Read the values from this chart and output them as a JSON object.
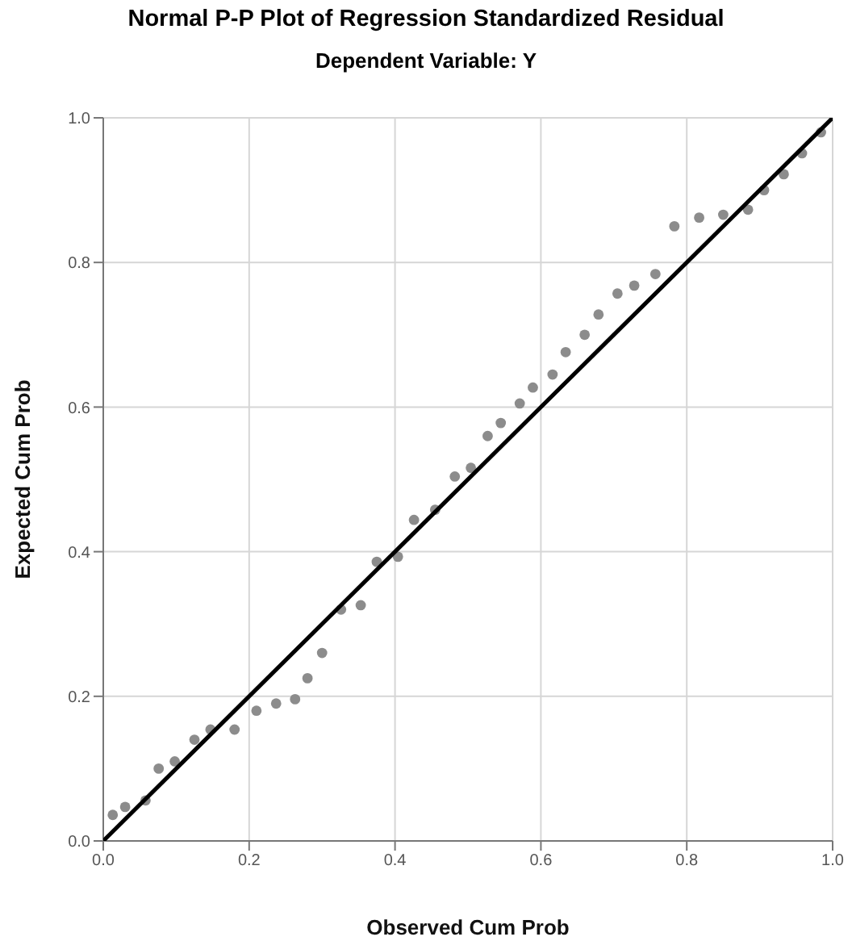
{
  "chart_data": {
    "type": "scatter",
    "title": "Normal P-P Plot of Regression Standardized Residual",
    "subtitle": "Dependent Variable: Y",
    "xlabel": "Observed Cum Prob",
    "ylabel": "Expected Cum Prob",
    "xlim": [
      0,
      1
    ],
    "ylim": [
      0,
      1
    ],
    "xticks": [
      {
        "value": 0,
        "label": "0.0"
      },
      0.2,
      0.4,
      0.6,
      0.8,
      {
        "value": 1,
        "label": "1.0"
      }
    ],
    "yticks": [
      {
        "value": 0,
        "label": "0.0"
      },
      0.2,
      0.4,
      0.6,
      0.8,
      {
        "value": 1,
        "label": "1.0"
      }
    ],
    "grid": true,
    "legend": false,
    "series": [
      {
        "marker": "circle",
        "color": "#8c8c8c",
        "x": [
          0.013,
          0.03,
          0.058,
          0.076,
          0.098,
          0.125,
          0.147,
          0.18,
          0.21,
          0.237,
          0.263,
          0.28,
          0.3,
          0.326,
          0.353,
          0.375,
          0.404,
          0.426,
          0.455,
          0.482,
          0.504,
          0.527,
          0.545,
          0.571,
          0.589,
          0.616,
          0.634,
          0.66,
          0.679,
          0.705,
          0.728,
          0.757,
          0.783,
          0.817,
          0.85,
          0.884,
          0.906,
          0.933,
          0.958,
          0.984
        ],
        "values": [
          0.036,
          0.047,
          0.056,
          0.1,
          0.11,
          0.14,
          0.154,
          0.154,
          0.18,
          0.19,
          0.196,
          0.225,
          0.26,
          0.32,
          0.326,
          0.386,
          0.393,
          0.444,
          0.458,
          0.504,
          0.516,
          0.56,
          0.578,
          0.605,
          0.627,
          0.645,
          0.676,
          0.7,
          0.728,
          0.757,
          0.768,
          0.784,
          0.85,
          0.862,
          0.866,
          0.873,
          0.9,
          0.922,
          0.951,
          0.98
        ]
      },
      {
        "type": "line",
        "marker": "none",
        "line_style": "solid",
        "color": "#000000",
        "x": [
          0,
          1
        ],
        "values": [
          0,
          1
        ]
      }
    ]
  }
}
